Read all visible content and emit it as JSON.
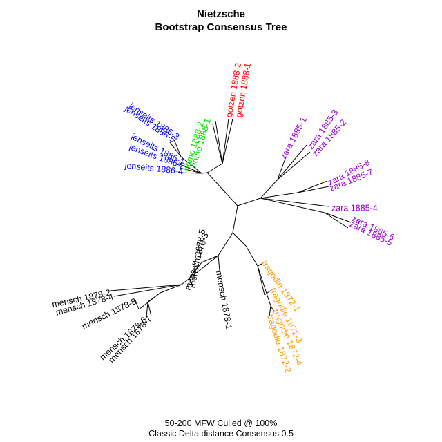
{
  "title": {
    "line1": "Nietzsche",
    "line2": "Bootstrap Consensus Tree"
  },
  "caption": {
    "line1": "50-200 MFW  Culled @ 100%",
    "line2": "Classic Delta distance Consensus 0.5"
  },
  "colors": {
    "branch": "#000000",
    "gotzen": "#ff0000",
    "homo": "#00dd00",
    "jenseits": "#0000ff",
    "zara": "#9900cc",
    "tragodie": "#ff9900",
    "mensch": "#000000"
  },
  "leaves": [
    {
      "id": "gotzen-1888-2",
      "label": "gotzen 1888-2",
      "group": "gotzen"
    },
    {
      "id": "gotzen-1888-1",
      "label": "gotzen 1888-1",
      "group": "gotzen"
    },
    {
      "id": "homo-1888-1",
      "label": "homo 1888-1",
      "group": "homo"
    },
    {
      "id": "homo-1888-2",
      "label": "homo 1888-2",
      "group": "homo"
    },
    {
      "id": "jenseits-1886-3",
      "label": "jenseits 1886-3",
      "group": "jenseits"
    },
    {
      "id": "jenseits-1886-5",
      "label": "jenseits 1886-5",
      "group": "jenseits"
    },
    {
      "id": "jenseits-1886-1",
      "label": "jenseits 1886-1",
      "group": "jenseits"
    },
    {
      "id": "jenseits-1886-2",
      "label": "jenseits 1886-2",
      "group": "jenseits"
    },
    {
      "id": "jenseits-1886-4",
      "label": "jenseits 1886-4",
      "group": "jenseits"
    },
    {
      "id": "zara-1885-1",
      "label": "zara 1885-1",
      "group": "zara"
    },
    {
      "id": "zara-1885-3",
      "label": "zara 1885-3",
      "group": "zara"
    },
    {
      "id": "zara-1885-2",
      "label": "zara 1885-2",
      "group": "zara"
    },
    {
      "id": "zara-1885-8",
      "label": "zara 1885-8",
      "group": "zara"
    },
    {
      "id": "zara-1885-7",
      "label": "zara 1885-7",
      "group": "zara"
    },
    {
      "id": "zara-1885-4",
      "label": "zara 1885-4",
      "group": "zara"
    },
    {
      "id": "zara-1885-6",
      "label": "zara 1885-6",
      "group": "zara"
    },
    {
      "id": "zara-1885-5",
      "label": "zara 1885-5",
      "group": "zara"
    },
    {
      "id": "tragodie-1872-1",
      "label": "tragodie 1872-1",
      "group": "tragodie"
    },
    {
      "id": "tragodie-1872-3",
      "label": "tragodie 1872-3",
      "group": "tragodie"
    },
    {
      "id": "tragodie-1872-4",
      "label": "tragodie 1872-4",
      "group": "tragodie"
    },
    {
      "id": "tragodie-1872-2",
      "label": "tragodie 1872-2",
      "group": "tragodie"
    },
    {
      "id": "mensch-1878-1",
      "label": "mensch 1878-1",
      "group": "mensch"
    },
    {
      "id": "mensch-1878-5",
      "label": "mensch 1878-5",
      "group": "mensch"
    },
    {
      "id": "mensch-1878-3",
      "label": "mensch 1878-3",
      "group": "mensch"
    },
    {
      "id": "mensch-1878-7",
      "label": "mensch 1878-7",
      "group": "mensch"
    },
    {
      "id": "mensch-1878-6",
      "label": "mensch 1878-6",
      "group": "mensch"
    },
    {
      "id": "mensch-1878-8",
      "label": "mensch 1878-8",
      "group": "mensch"
    },
    {
      "id": "mensch-1878-4",
      "label": "mensch 1878-4",
      "group": "mensch"
    },
    {
      "id": "mensch-1878-2",
      "label": "mensch 1878-2",
      "group": "mensch"
    }
  ]
}
